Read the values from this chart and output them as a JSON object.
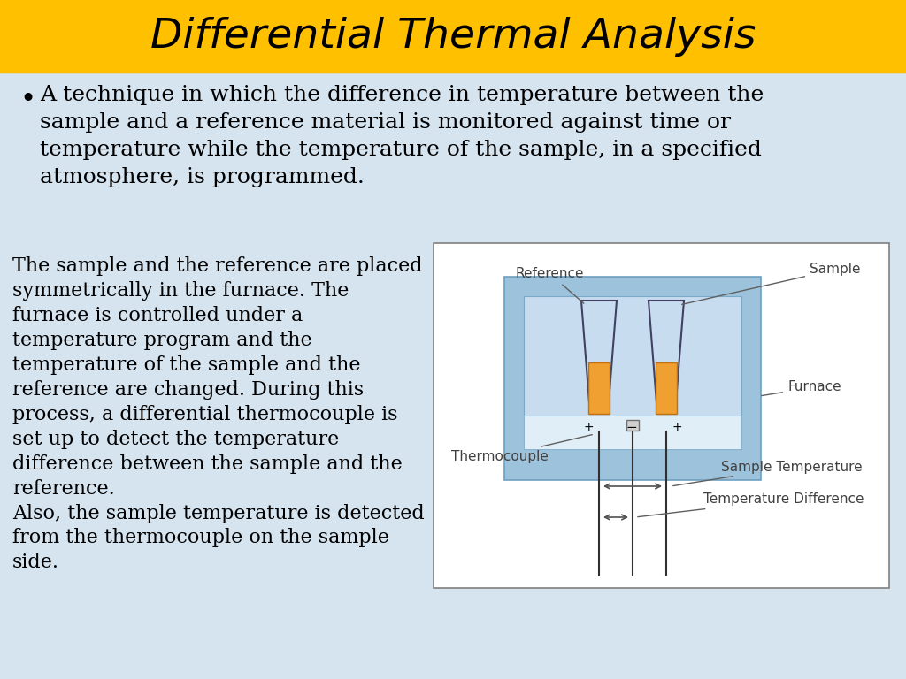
{
  "title": "Differential Thermal Analysis",
  "title_bg": "#FFC000",
  "title_color": "#000000",
  "title_fontsize": 34,
  "bg_color": "#D6E4F0",
  "bullet_text": "A technique in which the difference in temperature between the\nsample and a reference material is monitored against time or\ntemperature while the temperature of the sample, in a specified\natmosphere, is programmed.",
  "body_text1": "The sample and the reference are placed\nsymmetrically in the furnace. The\nfurnace is controlled under a\ntemperature program and the\ntemperature of the sample and the\nreference are changed. During this\nprocess, a differential thermocouple is\nset up to detect the temperature\ndifference between the sample and the\nreference.\nAlso, the sample temperature is detected\nfrom the thermocouple on the sample\nside.",
  "text_fontsize": 18,
  "body_fontsize": 16,
  "diagram_label_fontsize": 11,
  "furnace_outer_color": "#9DC3DC",
  "furnace_inner_color": "#C8DCF0",
  "sample_color": "#F0A030",
  "label_color": "#404040",
  "border_color": "#909090",
  "line_color": "#404040"
}
